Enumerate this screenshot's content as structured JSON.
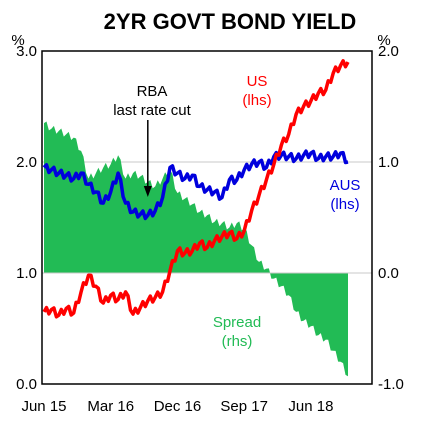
{
  "chart_data": {
    "type": "line",
    "title": "2YR GOVT BOND YIELD",
    "left_axis": {
      "unit": "%",
      "range": [
        0,
        3
      ],
      "ticks": [
        "0.0",
        "1.0",
        "2.0",
        "3.0"
      ]
    },
    "right_axis": {
      "unit": "%",
      "range": [
        -1,
        2
      ],
      "ticks": [
        "-1.0",
        "0.0",
        "1.0",
        "2.0"
      ]
    },
    "x_range": [
      "2015-06",
      "2018-11"
    ],
    "x_ticks": [
      "Jun 15",
      "Mar 16",
      "Dec 16",
      "Sep 17",
      "Jun 18"
    ],
    "x_tick_dates": [
      "2015-06",
      "2016-03",
      "2016-12",
      "2017-09",
      "2018-06"
    ],
    "grid": true,
    "dates": [
      "2015-06",
      "2015-07",
      "2015-08",
      "2015-09",
      "2015-10",
      "2015-11",
      "2015-12",
      "2016-01",
      "2016-02",
      "2016-03",
      "2016-04",
      "2016-05",
      "2016-06",
      "2016-07",
      "2016-08",
      "2016-09",
      "2016-10",
      "2016-11",
      "2016-12",
      "2017-01",
      "2017-02",
      "2017-03",
      "2017-04",
      "2017-05",
      "2017-06",
      "2017-07",
      "2017-08",
      "2017-09",
      "2017-10",
      "2017-11",
      "2017-12",
      "2018-01",
      "2018-02",
      "2018-03",
      "2018-04",
      "2018-05",
      "2018-06",
      "2018-07",
      "2018-08",
      "2018-09",
      "2018-10",
      "2018-11"
    ],
    "series": [
      {
        "name": "US",
        "axis": "left",
        "color": "#ff0000",
        "values": [
          0.65,
          0.67,
          0.62,
          0.68,
          0.64,
          0.83,
          0.98,
          0.88,
          0.73,
          0.8,
          0.76,
          0.83,
          0.63,
          0.69,
          0.75,
          0.78,
          0.83,
          1.02,
          1.2,
          1.18,
          1.2,
          1.27,
          1.23,
          1.29,
          1.33,
          1.36,
          1.31,
          1.38,
          1.56,
          1.7,
          1.84,
          1.98,
          2.15,
          2.25,
          2.43,
          2.5,
          2.55,
          2.62,
          2.65,
          2.8,
          2.87,
          2.9
        ]
      },
      {
        "name": "AUS",
        "axis": "left",
        "color": "#0000dd",
        "values": [
          1.95,
          1.93,
          1.9,
          1.88,
          1.85,
          1.9,
          1.8,
          1.73,
          1.63,
          1.73,
          1.9,
          1.63,
          1.55,
          1.53,
          1.52,
          1.56,
          1.68,
          1.95,
          1.9,
          1.85,
          1.88,
          1.78,
          1.75,
          1.73,
          1.68,
          1.84,
          1.84,
          1.93,
          1.98,
          2.0,
          1.95,
          2.05,
          2.06,
          2.05,
          2.03,
          2.06,
          2.08,
          2.03,
          2.05,
          2.05,
          2.08,
          2.0
        ]
      },
      {
        "name": "Spread",
        "axis": "right",
        "type": "area",
        "color": "#22bb55",
        "values": [
          1.35,
          1.3,
          1.28,
          1.25,
          1.22,
          1.1,
          0.85,
          0.9,
          0.95,
          0.98,
          1.06,
          0.85,
          0.9,
          0.87,
          0.82,
          0.78,
          0.85,
          0.93,
          0.72,
          0.67,
          0.62,
          0.55,
          0.52,
          0.46,
          0.45,
          0.41,
          0.45,
          0.4,
          0.25,
          0.1,
          0.04,
          -0.05,
          -0.12,
          -0.2,
          -0.35,
          -0.43,
          -0.48,
          -0.56,
          -0.6,
          -0.7,
          -0.8,
          -0.93
        ]
      }
    ],
    "series_labels": {
      "US": [
        "US",
        "(lhs)"
      ],
      "AUS": [
        "AUS",
        "(lhs)"
      ],
      "Spread": [
        "Spread",
        "(rhs)"
      ]
    },
    "annotations": [
      {
        "text": [
          "RBA",
          "last rate cut"
        ],
        "date": "2016-08"
      }
    ]
  }
}
